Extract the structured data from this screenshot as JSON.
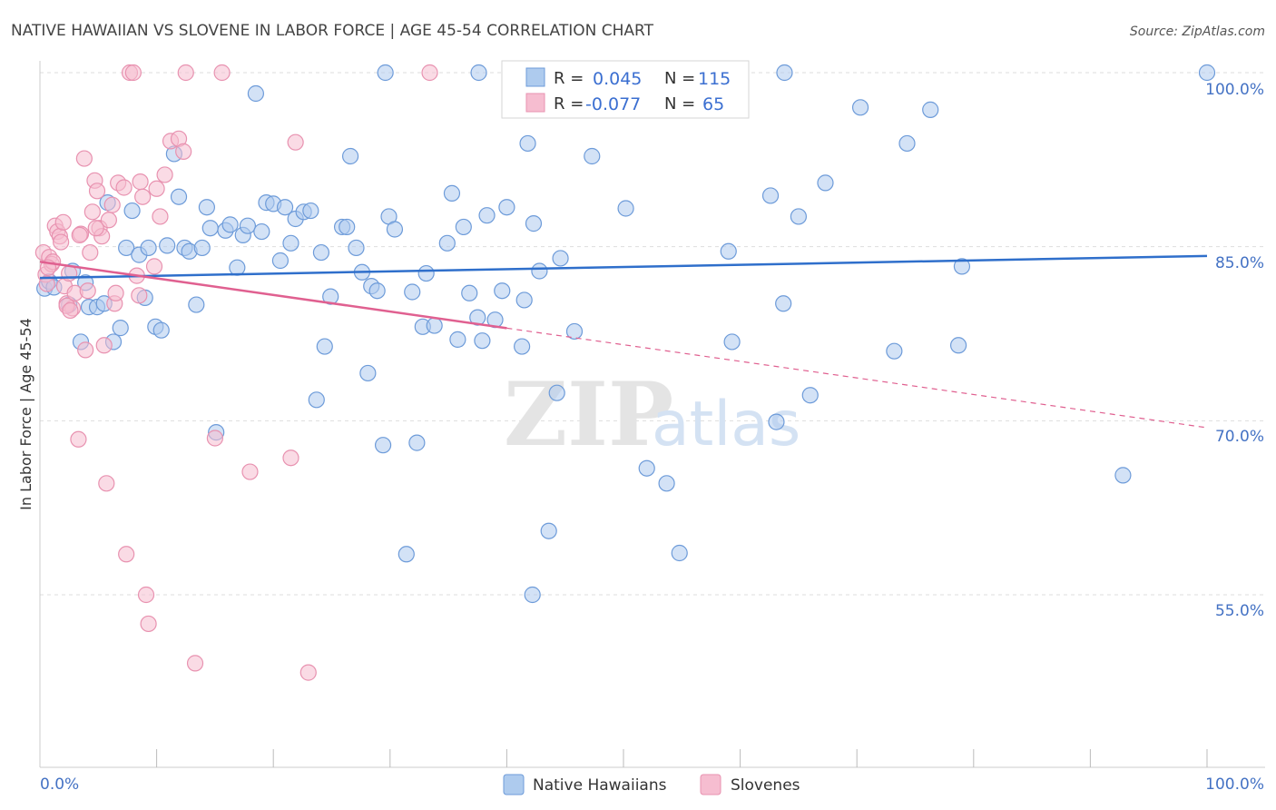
{
  "title": "NATIVE HAWAIIAN VS SLOVENE IN LABOR FORCE | AGE 45-54 CORRELATION CHART",
  "source": "Source: ZipAtlas.com",
  "watermark": {
    "zip": "ZIP",
    "atlas": "atlas"
  },
  "legend": {
    "r_label": "R =",
    "n_label": "N =",
    "rows": [
      {
        "r": "0.045",
        "n": "115"
      },
      {
        "r": "-0.077",
        "n": "65"
      }
    ]
  },
  "colors": {
    "blue_fill": "#aecbee",
    "blue_stroke": "#6d9bd9",
    "blue_line": "#2f6fcb",
    "pink_fill": "#f6bdd0",
    "pink_stroke": "#e892b0",
    "pink_line": "#e06090",
    "grid": "#dddddd",
    "axis_text": "#4472c4"
  },
  "chart_data": {
    "type": "scatter",
    "title": "NATIVE HAWAIIAN VS SLOVENE IN LABOR FORCE | AGE 45-54 CORRELATION CHART",
    "xlabel": "",
    "ylabel": "In Labor Force | Age 45-54",
    "xlim": [
      0,
      100
    ],
    "ylim": [
      40,
      101.5
    ],
    "x_tick_labels": [
      "0.0%",
      "100.0%"
    ],
    "y_ticks": [
      55,
      70,
      85,
      100
    ],
    "y_tick_labels": [
      "55.0%",
      "70.0%",
      "85.0%",
      "100.0%"
    ],
    "grid": true,
    "series": [
      {
        "name": "Native Hawaiians",
        "r": 0.045,
        "n": 115,
        "trend": {
          "x": [
            0,
            100
          ],
          "y": [
            82.3,
            84.2
          ],
          "dashed_from": null
        },
        "points": [
          [
            0.4,
            81.4
          ],
          [
            0.8,
            82.0
          ],
          [
            1.2,
            81.5
          ],
          [
            2.5,
            80.0
          ],
          [
            2.8,
            82.9
          ],
          [
            3.5,
            76.8
          ],
          [
            3.9,
            81.9
          ],
          [
            4.2,
            79.8
          ],
          [
            4.9,
            79.8
          ],
          [
            5.5,
            80.1
          ],
          [
            5.8,
            88.8
          ],
          [
            6.3,
            76.8
          ],
          [
            6.9,
            78.0
          ],
          [
            7.4,
            84.9
          ],
          [
            7.9,
            88.1
          ],
          [
            8.5,
            84.3
          ],
          [
            9.0,
            80.6
          ],
          [
            9.3,
            84.9
          ],
          [
            9.9,
            78.1
          ],
          [
            10.4,
            77.8
          ],
          [
            10.9,
            85.1
          ],
          [
            11.5,
            93.0
          ],
          [
            11.9,
            89.3
          ],
          [
            12.4,
            84.9
          ],
          [
            12.8,
            84.6
          ],
          [
            13.4,
            80.0
          ],
          [
            13.9,
            84.9
          ],
          [
            14.3,
            88.4
          ],
          [
            14.6,
            86.6
          ],
          [
            15.1,
            69.0
          ],
          [
            15.9,
            86.4
          ],
          [
            16.3,
            86.9
          ],
          [
            16.9,
            83.2
          ],
          [
            17.4,
            86.0
          ],
          [
            17.8,
            86.8
          ],
          [
            18.5,
            98.2
          ],
          [
            19.0,
            86.3
          ],
          [
            19.4,
            88.8
          ],
          [
            20.0,
            88.7
          ],
          [
            20.6,
            83.8
          ],
          [
            21.0,
            88.4
          ],
          [
            21.5,
            85.3
          ],
          [
            21.9,
            87.4
          ],
          [
            22.6,
            88.0
          ],
          [
            23.2,
            88.1
          ],
          [
            23.7,
            71.8
          ],
          [
            24.1,
            84.5
          ],
          [
            24.4,
            76.4
          ],
          [
            24.9,
            80.7
          ],
          [
            25.9,
            86.7
          ],
          [
            26.3,
            86.7
          ],
          [
            26.6,
            92.8
          ],
          [
            27.1,
            84.9
          ],
          [
            27.6,
            82.8
          ],
          [
            28.1,
            74.1
          ],
          [
            28.4,
            81.6
          ],
          [
            28.9,
            81.2
          ],
          [
            29.4,
            67.9
          ],
          [
            29.9,
            87.6
          ],
          [
            30.4,
            86.5
          ],
          [
            31.4,
            58.5
          ],
          [
            31.9,
            81.1
          ],
          [
            32.3,
            68.1
          ],
          [
            32.8,
            78.1
          ],
          [
            33.1,
            82.7
          ],
          [
            33.8,
            78.2
          ],
          [
            34.9,
            85.3
          ],
          [
            35.3,
            89.6
          ],
          [
            35.8,
            77.0
          ],
          [
            36.3,
            86.7
          ],
          [
            36.8,
            81.0
          ],
          [
            37.5,
            78.9
          ],
          [
            37.9,
            76.9
          ],
          [
            38.3,
            87.7
          ],
          [
            39.0,
            78.7
          ],
          [
            39.6,
            81.2
          ],
          [
            40.0,
            88.4
          ],
          [
            41.3,
            76.4
          ],
          [
            41.5,
            80.4
          ],
          [
            41.8,
            93.9
          ],
          [
            42.3,
            87.0
          ],
          [
            42.8,
            82.9
          ],
          [
            43.6,
            60.5
          ],
          [
            44.3,
            72.4
          ],
          [
            44.6,
            84.0
          ],
          [
            44.7,
            98.2
          ],
          [
            45.8,
            77.7
          ],
          [
            47.3,
            92.8
          ],
          [
            50.2,
            88.3
          ],
          [
            52.0,
            65.9
          ],
          [
            53.7,
            64.6
          ],
          [
            54.8,
            58.6
          ],
          [
            59.0,
            84.6
          ],
          [
            59.3,
            76.8
          ],
          [
            62.6,
            89.4
          ],
          [
            63.1,
            69.9
          ],
          [
            63.7,
            80.1
          ],
          [
            65.0,
            87.6
          ],
          [
            66.0,
            72.2
          ],
          [
            67.3,
            90.5
          ],
          [
            70.3,
            97.0
          ],
          [
            73.2,
            76.0
          ],
          [
            74.3,
            93.9
          ],
          [
            76.3,
            96.8
          ],
          [
            78.7,
            76.5
          ],
          [
            79.0,
            83.3
          ],
          [
            92.8,
            65.3
          ],
          [
            100.0,
            100.0
          ],
          [
            63.8,
            100.0
          ],
          [
            58.8,
            100.0
          ],
          [
            43.0,
            100.0
          ],
          [
            40.9,
            100.0
          ],
          [
            42.2,
            55.0
          ],
          [
            37.6,
            100.0
          ],
          [
            29.6,
            100.0
          ]
        ]
      },
      {
        "name": "Slovenes",
        "r": -0.077,
        "n": 65,
        "trend": {
          "x": [
            0,
            100
          ],
          "y": [
            83.7,
            69.4
          ],
          "dashed_from": 40
        },
        "points": [
          [
            0.3,
            84.5
          ],
          [
            0.5,
            82.6
          ],
          [
            0.6,
            81.8
          ],
          [
            0.8,
            84.1
          ],
          [
            1.0,
            83.5
          ],
          [
            1.3,
            86.8
          ],
          [
            1.5,
            86.3
          ],
          [
            1.7,
            85.9
          ],
          [
            1.8,
            85.4
          ],
          [
            2.0,
            87.1
          ],
          [
            2.1,
            81.6
          ],
          [
            2.3,
            80.1
          ],
          [
            2.5,
            82.7
          ],
          [
            2.8,
            79.7
          ],
          [
            3.0,
            81.0
          ],
          [
            3.3,
            68.4
          ],
          [
            3.5,
            86.1
          ],
          [
            3.8,
            92.6
          ],
          [
            3.9,
            76.1
          ],
          [
            4.1,
            81.2
          ],
          [
            4.3,
            84.5
          ],
          [
            4.5,
            88.0
          ],
          [
            4.7,
            90.7
          ],
          [
            4.9,
            89.8
          ],
          [
            5.1,
            86.6
          ],
          [
            5.3,
            85.9
          ],
          [
            5.5,
            76.5
          ],
          [
            5.7,
            64.6
          ],
          [
            5.9,
            87.3
          ],
          [
            6.2,
            88.6
          ],
          [
            6.4,
            80.1
          ],
          [
            6.7,
            90.5
          ],
          [
            7.2,
            90.1
          ],
          [
            7.4,
            58.5
          ],
          [
            7.7,
            100.0
          ],
          [
            8.0,
            100.0
          ],
          [
            8.3,
            82.5
          ],
          [
            8.6,
            90.6
          ],
          [
            8.8,
            89.3
          ],
          [
            9.1,
            55.0
          ],
          [
            9.3,
            52.5
          ],
          [
            9.8,
            83.3
          ],
          [
            10.0,
            90.0
          ],
          [
            10.3,
            87.6
          ],
          [
            10.7,
            91.2
          ],
          [
            11.2,
            94.1
          ],
          [
            11.9,
            94.3
          ],
          [
            12.3,
            93.2
          ],
          [
            12.5,
            100.0
          ],
          [
            13.3,
            49.1
          ],
          [
            15.0,
            68.5
          ],
          [
            15.6,
            100.0
          ],
          [
            18.0,
            65.6
          ],
          [
            21.5,
            66.8
          ],
          [
            21.9,
            94.0
          ],
          [
            23.0,
            48.3
          ],
          [
            33.4,
            100.0
          ],
          [
            2.3,
            79.9
          ],
          [
            3.4,
            86.0
          ],
          [
            4.8,
            86.6
          ],
          [
            6.5,
            81.0
          ],
          [
            8.5,
            80.8
          ],
          [
            1.1,
            83.7
          ],
          [
            0.7,
            83.2
          ],
          [
            2.6,
            79.5
          ]
        ]
      }
    ]
  },
  "bottom_legend": [
    "Native Hawaiians",
    "Slovenes"
  ]
}
